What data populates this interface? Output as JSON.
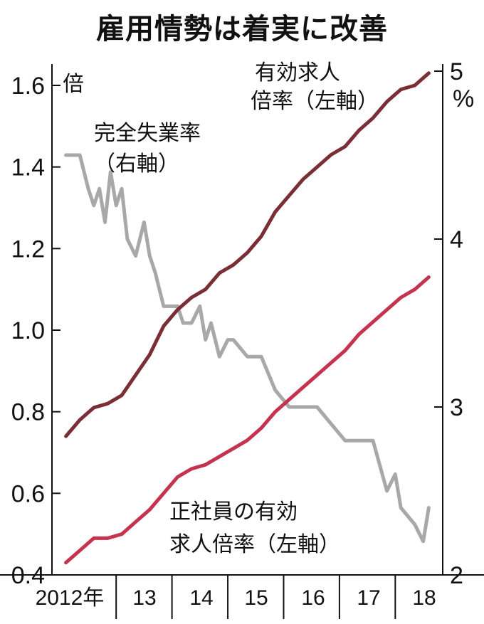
{
  "chart_data": {
    "type": "line",
    "title": "雇用情勢は着実に改善",
    "left_unit": "倍",
    "right_unit": "%",
    "left_axis": {
      "ticks": [
        "0.4",
        "0.6",
        "0.8",
        "1.0",
        "1.2",
        "1.4",
        "1.6"
      ],
      "ylim": [
        0.4,
        1.65
      ]
    },
    "right_axis": {
      "ticks": [
        "2",
        "3",
        "4",
        "5"
      ],
      "ylim": [
        2.0,
        5.0
      ]
    },
    "x_categories": [
      "2012年",
      "13",
      "14",
      "15",
      "16",
      "17",
      "18"
    ],
    "series": [
      {
        "name": [
          "有効求人",
          "倍率（左軸）"
        ],
        "axis": "left",
        "color": "#7a2e35",
        "x": [
          2012.0,
          2012.25,
          2012.5,
          2012.75,
          2013.0,
          2013.25,
          2013.5,
          2013.75,
          2014.0,
          2014.25,
          2014.5,
          2014.75,
          2015.0,
          2015.25,
          2015.5,
          2015.75,
          2016.0,
          2016.25,
          2016.5,
          2016.75,
          2017.0,
          2017.25,
          2017.5,
          2017.75,
          2018.0,
          2018.25,
          2018.5
        ],
        "values": [
          0.74,
          0.78,
          0.81,
          0.82,
          0.84,
          0.89,
          0.94,
          1.01,
          1.05,
          1.08,
          1.1,
          1.14,
          1.16,
          1.19,
          1.23,
          1.29,
          1.33,
          1.37,
          1.4,
          1.43,
          1.45,
          1.49,
          1.52,
          1.56,
          1.59,
          1.6,
          1.63
        ]
      },
      {
        "name": [
          "完全失業率",
          "（右軸）"
        ],
        "axis": "right",
        "color": "#a8a8a8",
        "x": [
          2012.0,
          2012.25,
          2012.4,
          2012.5,
          2012.6,
          2012.7,
          2012.8,
          2012.9,
          2013.0,
          2013.1,
          2013.25,
          2013.4,
          2013.5,
          2013.6,
          2013.75,
          2013.9,
          2014.0,
          2014.1,
          2014.25,
          2014.4,
          2014.5,
          2014.6,
          2014.75,
          2014.9,
          2015.0,
          2015.25,
          2015.5,
          2015.75,
          2016.0,
          2016.25,
          2016.5,
          2016.75,
          2017.0,
          2017.25,
          2017.5,
          2017.75,
          2017.9,
          2018.0,
          2018.25,
          2018.4,
          2018.5
        ],
        "values": [
          4.5,
          4.5,
          4.3,
          4.2,
          4.3,
          4.1,
          4.4,
          4.2,
          4.3,
          4.0,
          3.9,
          4.1,
          3.9,
          3.8,
          3.6,
          3.6,
          3.6,
          3.5,
          3.5,
          3.6,
          3.4,
          3.5,
          3.3,
          3.4,
          3.4,
          3.3,
          3.3,
          3.1,
          3.0,
          3.0,
          3.0,
          2.9,
          2.8,
          2.8,
          2.8,
          2.5,
          2.6,
          2.4,
          2.3,
          2.2,
          2.4
        ]
      },
      {
        "name": [
          "正社員の有効",
          "求人倍率（左軸）"
        ],
        "axis": "left",
        "color": "#c5344e",
        "x": [
          2012.0,
          2012.25,
          2012.5,
          2012.75,
          2013.0,
          2013.25,
          2013.5,
          2013.75,
          2014.0,
          2014.25,
          2014.5,
          2014.75,
          2015.0,
          2015.25,
          2015.5,
          2015.75,
          2016.0,
          2016.25,
          2016.5,
          2016.75,
          2017.0,
          2017.25,
          2017.5,
          2017.75,
          2018.0,
          2018.25,
          2018.5
        ],
        "values": [
          0.43,
          0.46,
          0.49,
          0.49,
          0.5,
          0.53,
          0.56,
          0.6,
          0.64,
          0.66,
          0.67,
          0.69,
          0.71,
          0.73,
          0.76,
          0.8,
          0.83,
          0.86,
          0.89,
          0.92,
          0.95,
          0.99,
          1.02,
          1.05,
          1.08,
          1.1,
          1.13
        ]
      }
    ]
  }
}
